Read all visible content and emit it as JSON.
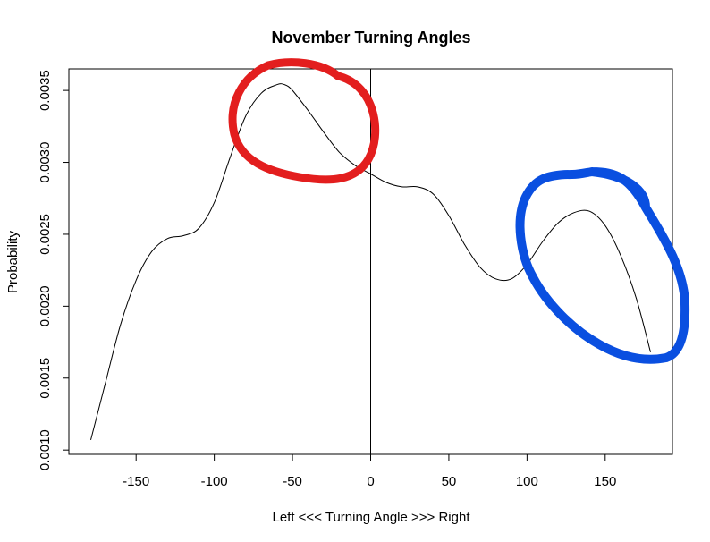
{
  "chart_data": {
    "type": "line",
    "title": "November Turning Angles",
    "xlabel": "Left <<< Turning Angle >>> Right",
    "ylabel": "Probability",
    "xlim": [
      -193,
      193
    ],
    "ylim": [
      0.00097,
      0.00365
    ],
    "x_ticks": [
      -150,
      -100,
      -50,
      0,
      50,
      100,
      150
    ],
    "x_tick_labels": [
      "-150",
      "-100",
      "-50",
      "0",
      "50",
      "100",
      "150"
    ],
    "y_ticks": [
      0.001,
      0.0015,
      0.002,
      0.0025,
      0.003,
      0.0035
    ],
    "y_tick_labels": [
      "0.0010",
      "0.0015",
      "0.0020",
      "0.0025",
      "0.0030",
      "0.0035"
    ],
    "reference_line_x": 0,
    "grid": false,
    "series": [
      {
        "x": [
          -179,
          -170,
          -160,
          -150,
          -140,
          -130,
          -120,
          -110,
          -100,
          -90,
          -80,
          -70,
          -60,
          -55,
          -50,
          -40,
          -30,
          -20,
          -10,
          0,
          10,
          20,
          30,
          40,
          50,
          60,
          70,
          80,
          90,
          100,
          110,
          120,
          130,
          140,
          150,
          160,
          170,
          179
        ],
        "y": [
          0.00107,
          0.00145,
          0.00187,
          0.00218,
          0.00238,
          0.00247,
          0.00249,
          0.00254,
          0.00272,
          0.00303,
          0.00332,
          0.00348,
          0.00354,
          0.00354,
          0.0035,
          0.00336,
          0.00321,
          0.00307,
          0.00298,
          0.00292,
          0.00286,
          0.00283,
          0.00283,
          0.00278,
          0.00263,
          0.00243,
          0.00227,
          0.00219,
          0.00219,
          0.00229,
          0.00245,
          0.00258,
          0.00265,
          0.00266,
          0.00256,
          0.00235,
          0.00205,
          0.00168
        ]
      }
    ]
  },
  "annotations": {
    "red_circle_color": "#e31e1e",
    "blue_circle_color": "#0a4fe0"
  }
}
